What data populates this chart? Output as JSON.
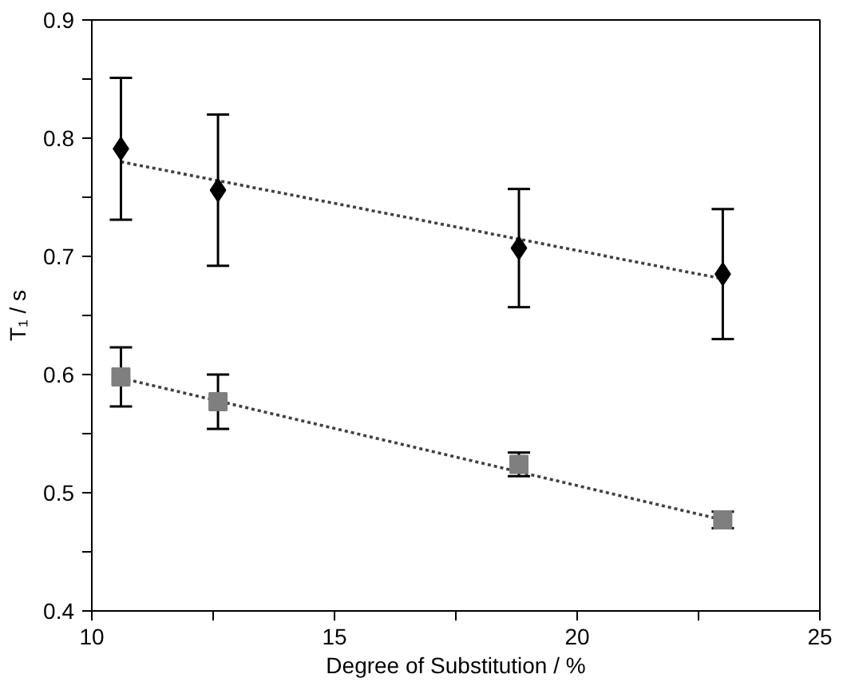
{
  "chart_data": {
    "type": "scatter",
    "xlabel": "Degree of Substitution / %",
    "ylabel": "T₁ / s",
    "xlim": [
      10,
      25
    ],
    "ylim": [
      0.4,
      0.9
    ],
    "xticks": [
      10,
      {
        "value": 12.5,
        "label": null
      },
      15,
      {
        "value": 17.5,
        "label": null
      },
      20,
      {
        "value": 22.5,
        "label": null
      },
      25
    ],
    "yticks": [
      0.4,
      {
        "value": 0.45,
        "label": null
      },
      0.5,
      {
        "value": 0.55,
        "label": null
      },
      0.6,
      {
        "value": 0.65,
        "label": null
      },
      0.7,
      {
        "value": 0.75,
        "label": null
      },
      0.8,
      {
        "value": 0.85,
        "label": null
      },
      0.9
    ],
    "grid": false,
    "series": [
      {
        "marker": "diamond",
        "color": "#000000",
        "x": [
          10.6,
          12.6,
          18.8,
          23.0
        ],
        "values": [
          0.791,
          0.756,
          0.707,
          0.685
        ],
        "errors": [
          0.06,
          0.064,
          0.05,
          0.055
        ]
      },
      {
        "marker": "square",
        "color": "#7f7f7f",
        "x": [
          10.6,
          12.6,
          18.8,
          23.0
        ],
        "values": [
          0.598,
          0.577,
          0.524,
          0.477
        ],
        "errors": [
          0.025,
          0.023,
          0.01,
          0.007
        ]
      },
      {
        "type": "line",
        "line_style": "dotted",
        "color": "#404040",
        "x": [
          10.6,
          23.0
        ],
        "values": [
          0.78,
          0.681
        ]
      },
      {
        "type": "line",
        "line_style": "dotted",
        "color": "#404040",
        "x": [
          10.6,
          23.0
        ],
        "values": [
          0.597,
          0.477
        ]
      }
    ]
  }
}
